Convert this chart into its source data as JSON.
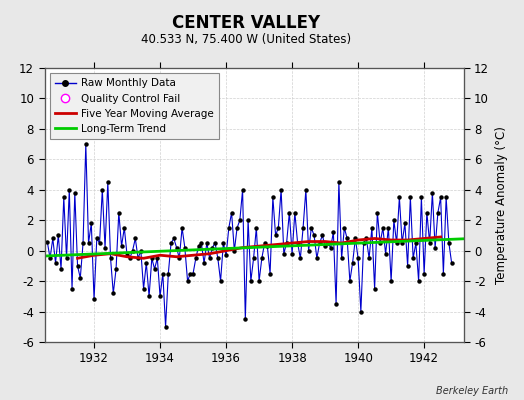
{
  "title": "CENTER VALLEY",
  "subtitle": "40.533 N, 75.400 W (United States)",
  "ylabel": "Temperature Anomaly (°C)",
  "credit": "Berkeley Earth",
  "xlim": [
    1930.5,
    1943.2
  ],
  "ylim": [
    -6,
    12
  ],
  "yticks": [
    -6,
    -4,
    -2,
    0,
    2,
    4,
    6,
    8,
    10,
    12
  ],
  "xticks": [
    1932,
    1934,
    1936,
    1938,
    1940,
    1942
  ],
  "bg_color": "#e8e8e8",
  "plot_bg_color": "#ffffff",
  "raw_color": "#0000cc",
  "raw_dot_color": "#000000",
  "ma_color": "#cc0000",
  "trend_color": "#00cc00",
  "qc_color": "#ff00ff",
  "legend_labels": [
    "Raw Monthly Data",
    "Quality Control Fail",
    "Five Year Moving Average",
    "Long-Term Trend"
  ],
  "raw_data_x": [
    1930.583,
    1930.667,
    1930.75,
    1930.833,
    1930.917,
    1931.0,
    1931.083,
    1931.167,
    1931.25,
    1931.333,
    1931.417,
    1931.5,
    1931.583,
    1931.667,
    1931.75,
    1931.833,
    1931.917,
    1932.0,
    1932.083,
    1932.167,
    1932.25,
    1932.333,
    1932.417,
    1932.5,
    1932.583,
    1932.667,
    1932.75,
    1932.833,
    1932.917,
    1933.0,
    1933.083,
    1933.167,
    1933.25,
    1933.333,
    1933.417,
    1933.5,
    1933.583,
    1933.667,
    1933.75,
    1933.833,
    1933.917,
    1934.0,
    1934.083,
    1934.167,
    1934.25,
    1934.333,
    1934.417,
    1934.5,
    1934.583,
    1934.667,
    1934.75,
    1934.833,
    1934.917,
    1935.0,
    1935.083,
    1935.167,
    1935.25,
    1935.333,
    1935.417,
    1935.5,
    1935.583,
    1935.667,
    1935.75,
    1935.833,
    1935.917,
    1936.0,
    1936.083,
    1936.167,
    1936.25,
    1936.333,
    1936.417,
    1936.5,
    1936.583,
    1936.667,
    1936.75,
    1936.833,
    1936.917,
    1937.0,
    1937.083,
    1937.167,
    1937.25,
    1937.333,
    1937.417,
    1937.5,
    1937.583,
    1937.667,
    1937.75,
    1937.833,
    1937.917,
    1938.0,
    1938.083,
    1938.167,
    1938.25,
    1938.333,
    1938.417,
    1938.5,
    1938.583,
    1938.667,
    1938.75,
    1938.833,
    1938.917,
    1939.0,
    1939.083,
    1939.167,
    1939.25,
    1939.333,
    1939.417,
    1939.5,
    1939.583,
    1939.667,
    1939.75,
    1939.833,
    1939.917,
    1940.0,
    1940.083,
    1940.167,
    1940.25,
    1940.333,
    1940.417,
    1940.5,
    1940.583,
    1940.667,
    1940.75,
    1940.833,
    1940.917,
    1941.0,
    1941.083,
    1941.167,
    1941.25,
    1941.333,
    1941.417,
    1941.5,
    1941.583,
    1941.667,
    1941.75,
    1941.833,
    1941.917,
    1942.0,
    1942.083,
    1942.167,
    1942.25,
    1942.333,
    1942.417,
    1942.5,
    1942.583,
    1942.667,
    1942.75,
    1942.833
  ],
  "raw_data_y": [
    0.6,
    -0.5,
    0.8,
    -0.8,
    1.0,
    -1.2,
    3.5,
    -0.5,
    4.0,
    -2.5,
    3.8,
    -1.0,
    -1.8,
    0.5,
    7.0,
    0.5,
    1.8,
    -3.2,
    0.8,
    0.5,
    4.0,
    0.2,
    4.5,
    -0.5,
    -2.8,
    -1.2,
    2.5,
    0.3,
    1.5,
    -0.3,
    -0.5,
    0.0,
    0.8,
    -0.5,
    0.0,
    -2.5,
    -0.8,
    -3.0,
    -0.5,
    -1.2,
    -0.5,
    -3.0,
    -1.5,
    -5.0,
    -1.5,
    0.5,
    0.8,
    0.2,
    -0.5,
    1.5,
    0.2,
    -2.0,
    -1.5,
    -1.5,
    -0.5,
    0.3,
    0.5,
    -0.8,
    0.5,
    -0.5,
    0.2,
    0.5,
    -0.5,
    -2.0,
    0.5,
    -0.3,
    1.5,
    2.5,
    0.0,
    1.5,
    2.0,
    4.0,
    -4.5,
    2.0,
    -2.0,
    -0.5,
    1.5,
    -2.0,
    -0.5,
    0.5,
    0.3,
    -1.5,
    3.5,
    1.0,
    1.5,
    4.0,
    -0.2,
    0.5,
    2.5,
    -0.2,
    2.5,
    0.5,
    -0.5,
    1.5,
    4.0,
    0.0,
    1.5,
    1.0,
    -0.5,
    0.5,
    1.0,
    0.3,
    0.5,
    0.2,
    1.2,
    -3.5,
    4.5,
    -0.5,
    1.5,
    0.8,
    -2.0,
    -0.8,
    0.8,
    -0.5,
    -4.0,
    0.5,
    0.8,
    -0.5,
    1.5,
    -2.5,
    2.5,
    0.5,
    1.5,
    -0.2,
    1.5,
    -2.0,
    2.0,
    0.5,
    3.5,
    0.5,
    1.8,
    -1.0,
    3.5,
    -0.5,
    0.5,
    -2.0,
    3.5,
    -1.5,
    2.5,
    0.5,
    3.8,
    0.2,
    2.5,
    3.5,
    -1.5,
    3.5,
    0.5,
    -0.8
  ],
  "ma_x": [
    1931.5,
    1932.0,
    1932.5,
    1933.0,
    1933.5,
    1934.0,
    1934.5,
    1935.0,
    1935.5,
    1936.0,
    1936.5,
    1937.0,
    1937.5,
    1938.0,
    1938.5,
    1939.0,
    1939.5,
    1940.0,
    1940.5,
    1941.0,
    1941.5,
    1942.0,
    1942.5
  ],
  "ma_y": [
    -0.5,
    -0.3,
    -0.2,
    -0.4,
    -0.5,
    -0.3,
    -0.4,
    -0.3,
    -0.2,
    0.0,
    0.2,
    0.3,
    0.4,
    0.5,
    0.6,
    0.6,
    0.5,
    0.7,
    0.8,
    0.7,
    0.7,
    0.8,
    0.9
  ],
  "trend_x": [
    1930.5,
    1943.2
  ],
  "trend_y": [
    -0.35,
    0.78
  ]
}
